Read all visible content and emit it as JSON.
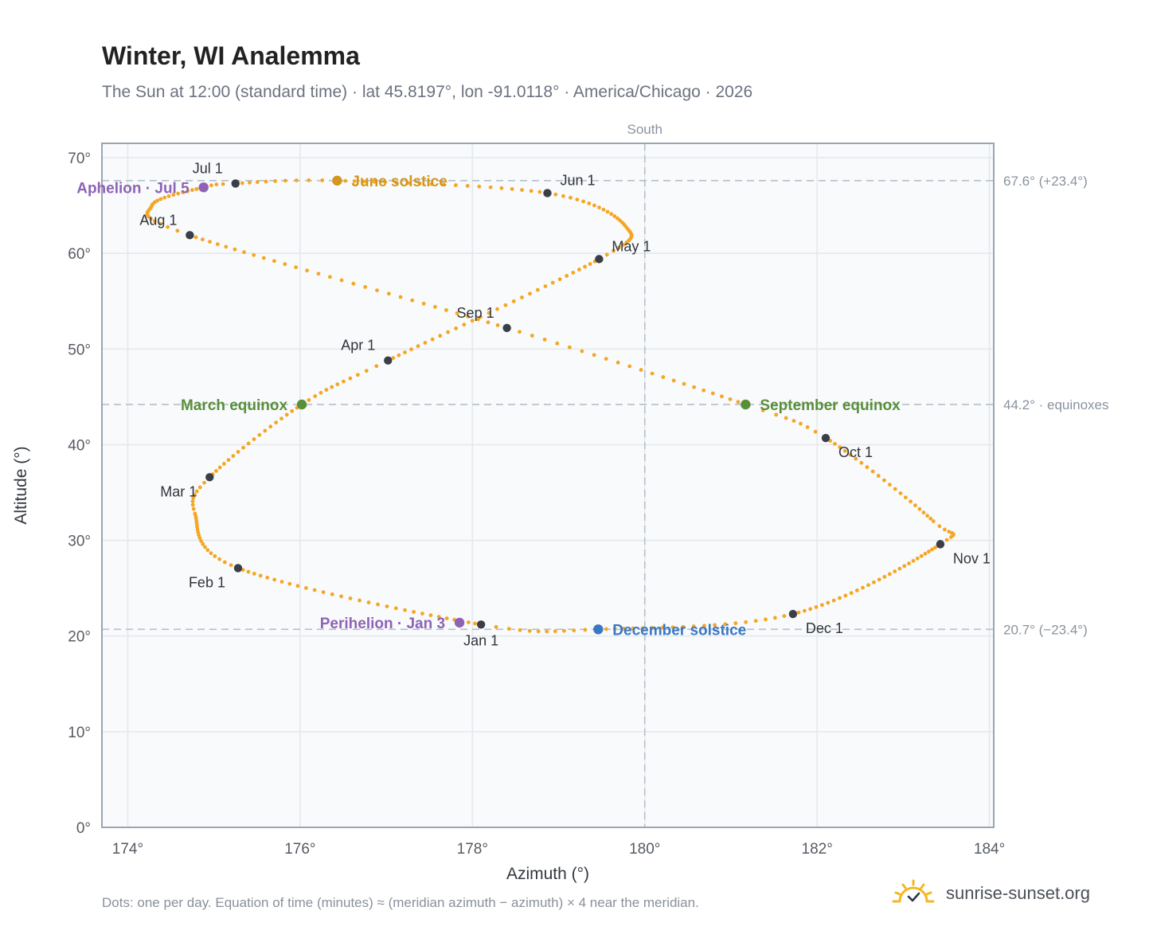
{
  "header": {
    "title": "Winter, WI Analemma",
    "subtitle": "The Sun at 12:00 (standard time) · lat 45.8197°, lon -91.0118° · America/Chicago · 2026"
  },
  "footer": {
    "note": "Dots: one per day. Equation of time (minutes) ≈ (meridian azimuth − azimuth) × 4 near the meridian.",
    "brand": "sunrise-sunset.org",
    "brand_icon": "sun-icon"
  },
  "chart_data": {
    "type": "scatter",
    "xlabel": "Azimuth (°)",
    "ylabel": "Altitude (°)",
    "xlim": [
      173.7,
      184.05
    ],
    "ylim": [
      0,
      71.5
    ],
    "x_ticks": [
      174,
      176,
      178,
      180,
      182,
      184
    ],
    "x_tick_labels": [
      "174°",
      "176°",
      "178°",
      "180°",
      "182°",
      "184°"
    ],
    "y_ticks": [
      0,
      10,
      20,
      30,
      40,
      50,
      60,
      70
    ],
    "y_tick_labels": [
      "0°",
      "10°",
      "20°",
      "30°",
      "40°",
      "50°",
      "60°",
      "70°"
    ],
    "grid": true,
    "meridian": {
      "x": 180,
      "label": "South"
    },
    "reference_lines": [
      {
        "y": 67.6,
        "label": "67.6° (+23.4°)"
      },
      {
        "y": 44.2,
        "label": "44.2° · equinoxes"
      },
      {
        "y": 20.7,
        "label": "20.7° (−23.4°)"
      }
    ],
    "colors": {
      "daily": "#f5a623",
      "month": "#3a3f47",
      "solstice_june": "#d4961c",
      "solstice_december": "#3b78c3",
      "equinox": "#5a8f3a",
      "apsis": "#8e63b4",
      "reference": "#b6c0cc",
      "frame": "#9aa5b1",
      "grid": "#e3e8ee",
      "plot_bg": "#f8fafc"
    },
    "daily_path_anchors": [
      {
        "day": 0,
        "x": 178.1,
        "y": 21.2
      },
      {
        "day": 31,
        "x": 175.28,
        "y": 27.1
      },
      {
        "day": 50,
        "x": 174.78,
        "y": 32.8
      },
      {
        "day": 59,
        "x": 174.95,
        "y": 36.6
      },
      {
        "day": 78,
        "x": 176.02,
        "y": 44.2
      },
      {
        "day": 90,
        "x": 177.02,
        "y": 48.8
      },
      {
        "day": 120,
        "x": 179.47,
        "y": 59.4
      },
      {
        "day": 134,
        "x": 179.78,
        "y": 62.8
      },
      {
        "day": 151,
        "x": 178.87,
        "y": 66.3
      },
      {
        "day": 171,
        "x": 176.43,
        "y": 67.6
      },
      {
        "day": 181,
        "x": 175.25,
        "y": 67.3
      },
      {
        "day": 185,
        "x": 174.88,
        "y": 66.9
      },
      {
        "day": 199,
        "x": 174.28,
        "y": 65.0
      },
      {
        "day": 212,
        "x": 174.72,
        "y": 61.9
      },
      {
        "day": 243,
        "x": 178.4,
        "y": 52.2
      },
      {
        "day": 265,
        "x": 181.17,
        "y": 44.2
      },
      {
        "day": 273,
        "x": 182.1,
        "y": 40.7
      },
      {
        "day": 295,
        "x": 183.35,
        "y": 32.0
      },
      {
        "day": 304,
        "x": 183.43,
        "y": 29.6
      },
      {
        "day": 334,
        "x": 181.72,
        "y": 22.3
      },
      {
        "day": 354,
        "x": 179.46,
        "y": 20.7
      },
      {
        "day": 365,
        "x": 178.1,
        "y": 21.2
      }
    ],
    "month_markers": [
      {
        "label": "Jan 1",
        "x": 178.1,
        "y": 21.2,
        "label_pos": "below"
      },
      {
        "label": "Feb 1",
        "x": 175.28,
        "y": 27.1,
        "label_pos": "below-left"
      },
      {
        "label": "Mar 1",
        "x": 174.95,
        "y": 36.6,
        "label_pos": "below-left"
      },
      {
        "label": "Apr 1",
        "x": 177.02,
        "y": 48.8,
        "label_pos": "above-left"
      },
      {
        "label": "May 1",
        "x": 179.47,
        "y": 59.4,
        "label_pos": "above-right"
      },
      {
        "label": "Jun 1",
        "x": 178.87,
        "y": 66.3,
        "label_pos": "above-right"
      },
      {
        "label": "Jul 1",
        "x": 175.25,
        "y": 67.3,
        "label_pos": "above-left"
      },
      {
        "label": "Aug 1",
        "x": 174.72,
        "y": 61.9,
        "label_pos": "above-left"
      },
      {
        "label": "Sep 1",
        "x": 178.4,
        "y": 52.2,
        "label_pos": "above-left"
      },
      {
        "label": "Oct 1",
        "x": 182.1,
        "y": 40.7,
        "label_pos": "below-right"
      },
      {
        "label": "Nov 1",
        "x": 183.43,
        "y": 29.6,
        "label_pos": "below-right"
      },
      {
        "label": "Dec 1",
        "x": 181.72,
        "y": 22.3,
        "label_pos": "below-right"
      }
    ],
    "events": [
      {
        "label": "June solstice",
        "x": 176.43,
        "y": 67.6,
        "color_key": "solstice_june",
        "label_pos": "right"
      },
      {
        "label": "December solstice",
        "x": 179.46,
        "y": 20.7,
        "color_key": "solstice_december",
        "label_pos": "right"
      },
      {
        "label": "March equinox",
        "x": 176.02,
        "y": 44.2,
        "color_key": "equinox",
        "label_pos": "left"
      },
      {
        "label": "September equinox",
        "x": 181.17,
        "y": 44.2,
        "color_key": "equinox",
        "label_pos": "right"
      },
      {
        "label": "Aphelion · Jul 5",
        "x": 174.88,
        "y": 66.9,
        "color_key": "apsis",
        "label_pos": "left"
      },
      {
        "label": "Perihelion · Jan 3",
        "x": 177.85,
        "y": 21.4,
        "color_key": "apsis",
        "label_pos": "left"
      }
    ]
  }
}
